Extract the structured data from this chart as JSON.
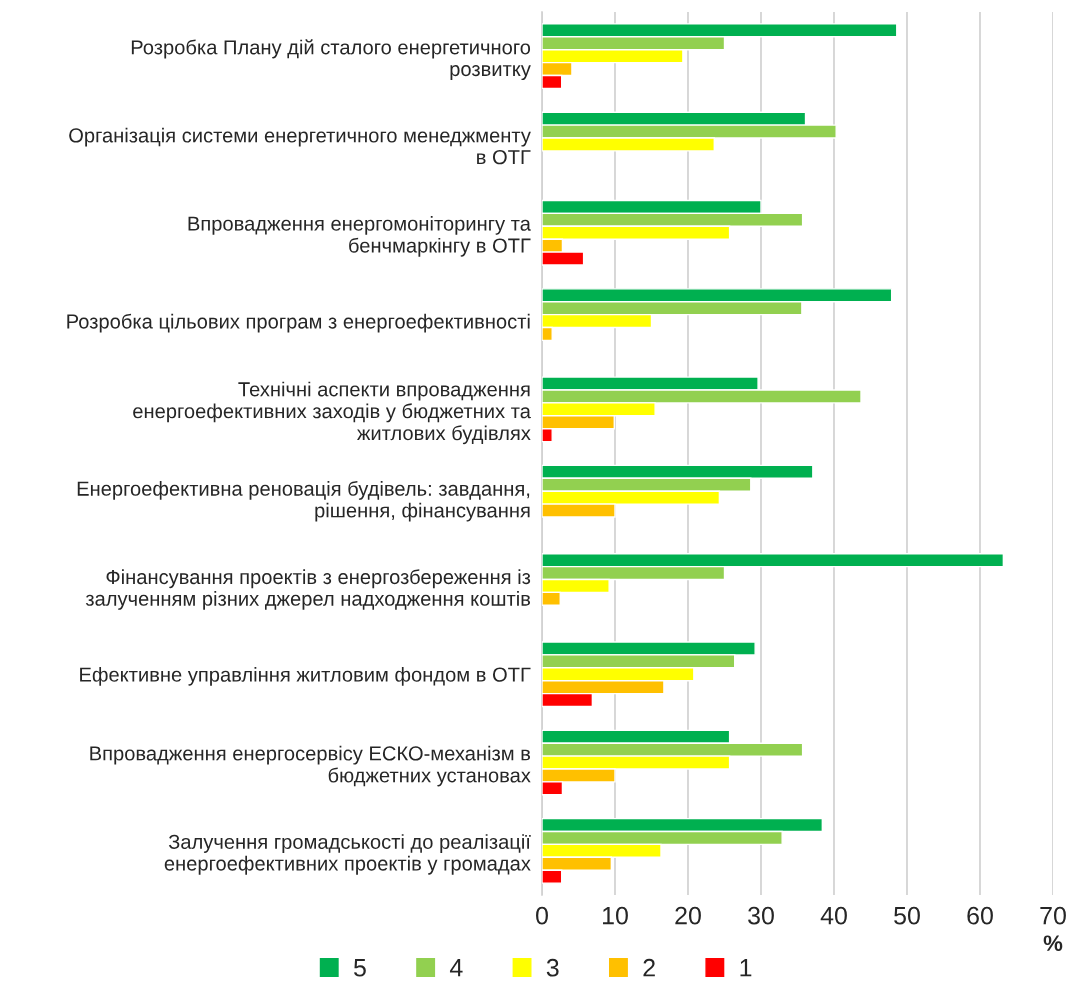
{
  "chart_data": {
    "type": "bar",
    "orientation": "horizontal",
    "xlabel": "%",
    "categories": [
      "Розробка Плану дій сталого енергетичного\nрозвитку",
      "Організація системи енергетичного менеджменту\nв ОТГ",
      "Впровадження енергомоніторингу та\nбенчмаркінгу в ОТГ",
      "Розробка цільових програм з енергоефективності",
      "Технічні аспекти впровадження\nенергоефективних заходів у бюджетних та\nжитлових будівлях",
      "Енергоефективна реновація будівель: завдання,\nрішення, фінансування",
      "Фінансування проектів з енергозбереження із\nзалученням різних джерел надходження коштів",
      "Ефективне управління житловим фондом в ОТГ",
      "Впровадження енергосервісу ЕСКО-механізм в\nбюджетних установах",
      "Залучення громадськості до реалізації\nенергоефективних проектів у громадах"
    ],
    "series": [
      {
        "name": "5",
        "color": "#00b050",
        "values": [
          48.6,
          36.1,
          30.0,
          47.9,
          29.6,
          37.1,
          63.2,
          29.2,
          25.7,
          38.4
        ]
      },
      {
        "name": "4",
        "color": "#92d050",
        "values": [
          25.0,
          40.3,
          35.7,
          35.6,
          43.7,
          28.6,
          25.0,
          26.4,
          35.7,
          32.9
        ]
      },
      {
        "name": "3",
        "color": "#ffff00",
        "values": [
          19.3,
          23.6,
          25.7,
          15.0,
          15.5,
          24.3,
          9.2,
          20.8,
          25.7,
          16.3
        ]
      },
      {
        "name": "2",
        "color": "#ffc000",
        "values": [
          4.1,
          null,
          2.8,
          1.4,
          9.9,
          10.0,
          2.5,
          16.7,
          10.0,
          9.5
        ]
      },
      {
        "name": "1",
        "color": "#ff0000",
        "values": [
          2.7,
          null,
          5.7,
          null,
          1.4,
          null,
          null,
          6.9,
          2.8,
          2.7
        ]
      }
    ],
    "xlim": [
      0,
      70
    ],
    "xticks": [
      0,
      10,
      20,
      30,
      40,
      50,
      60,
      70
    ],
    "grid": "x",
    "legend": "bottom"
  }
}
